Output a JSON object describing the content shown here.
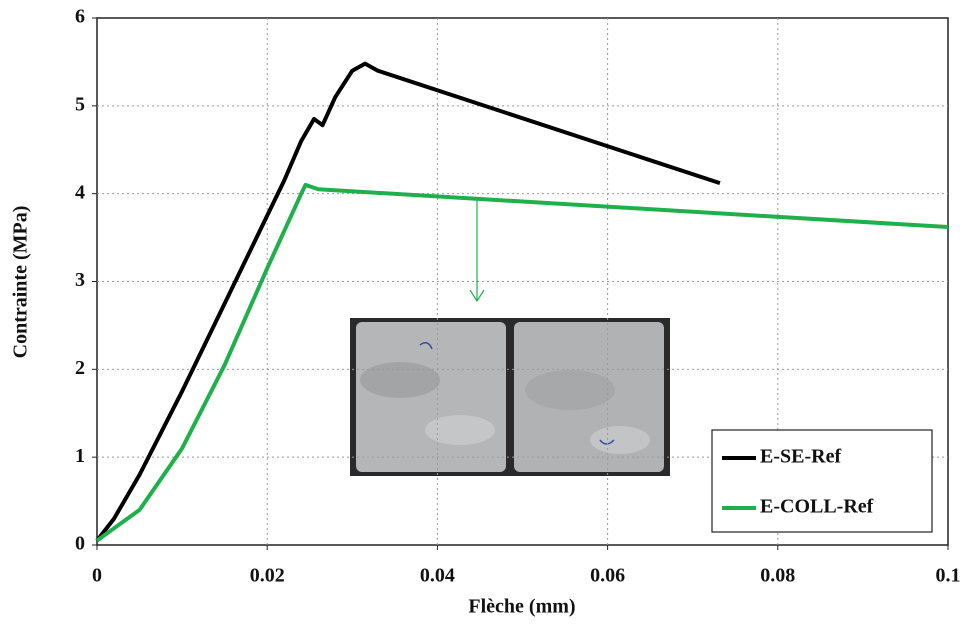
{
  "chart_data": {
    "type": "line",
    "x_label": "Flèche (mm)",
    "y_label": "Contrainte (MPa)",
    "series": [
      {
        "name": "E-SE-Ref",
        "color": "#000000",
        "x": [
          0,
          0.002,
          0.005,
          0.01,
          0.015,
          0.02,
          0.022,
          0.024,
          0.0255,
          0.0265,
          0.028,
          0.03,
          0.0315,
          0.033,
          0.0732
        ],
        "values": [
          0.05,
          0.3,
          0.8,
          1.75,
          2.75,
          3.75,
          4.15,
          4.6,
          4.85,
          4.78,
          5.1,
          5.4,
          5.48,
          5.4,
          4.12
        ]
      },
      {
        "name": "E-COLL-Ref",
        "color": "#1fb04b",
        "x": [
          0,
          0.005,
          0.01,
          0.015,
          0.02,
          0.024,
          0.0245,
          0.026,
          0.1
        ],
        "values": [
          0.05,
          0.4,
          1.1,
          2.05,
          3.15,
          4.0,
          4.1,
          4.05,
          3.62
        ]
      }
    ],
    "xlim": [
      0,
      0.1
    ],
    "xticks": [
      0,
      0.02,
      0.04,
      0.06,
      0.08,
      0.1
    ],
    "ylim": [
      0,
      6
    ],
    "yticks": [
      0,
      1,
      2,
      3,
      4,
      5,
      6
    ],
    "grid": true,
    "legend": "lower right"
  }
}
